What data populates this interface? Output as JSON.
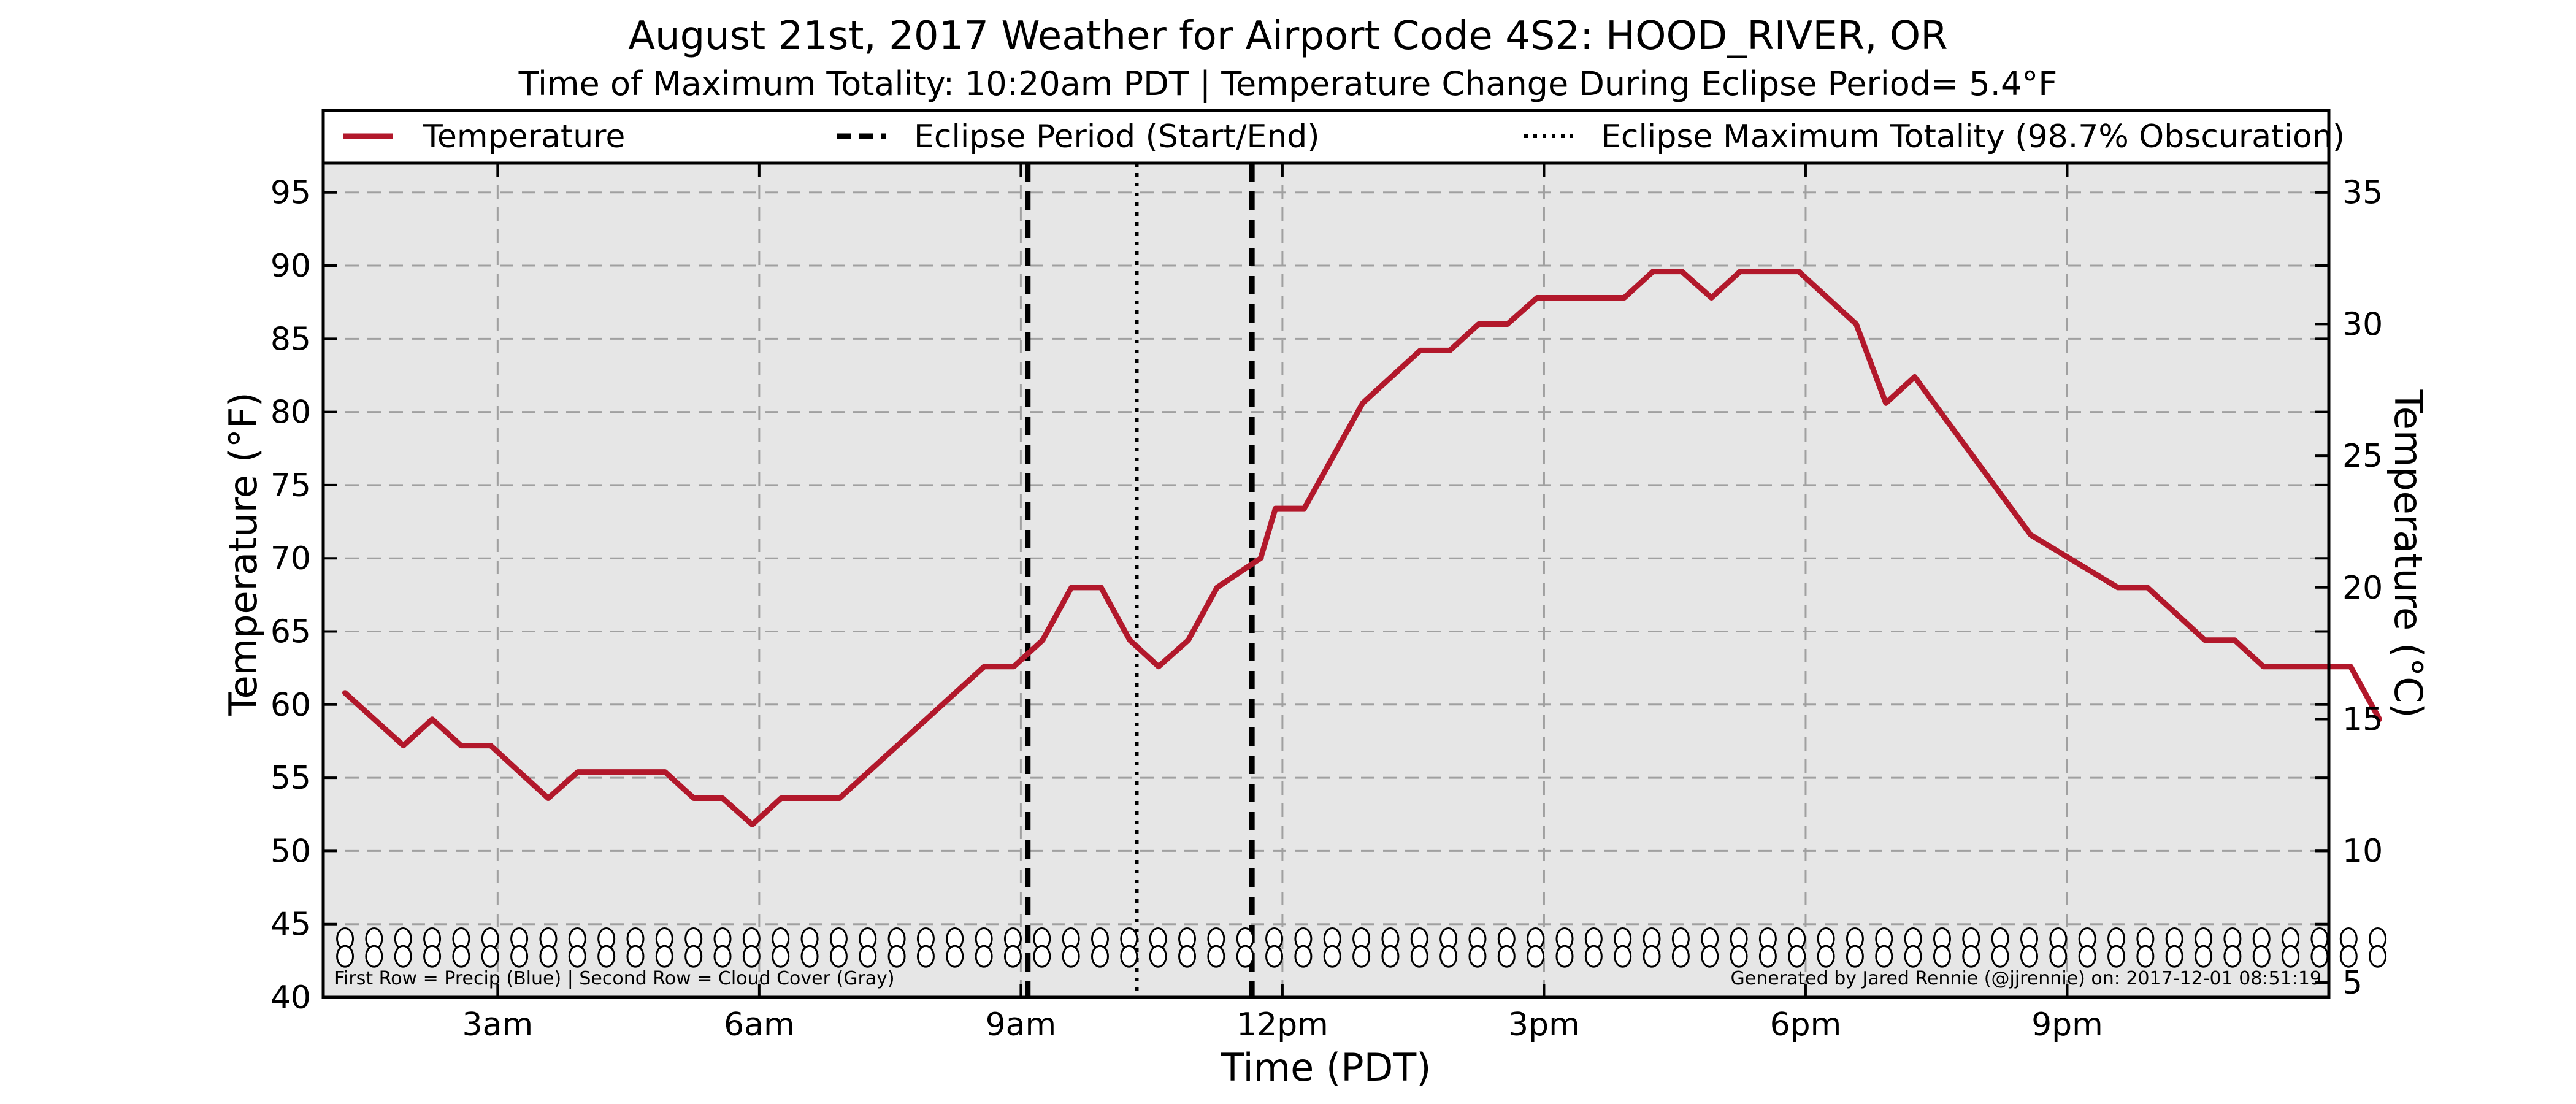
{
  "chart_data": {
    "type": "line",
    "title": "August 21st, 2017 Weather for Airport Code 4S2: HOOD_RIVER, OR",
    "subtitle": "Time of Maximum Totality: 10:20am PDT | Temperature Change During Eclipse Period= 5.4$^\\circ$F",
    "subtitle_display": "Time of Maximum Totality: 10:20am PDT | Temperature Change During Eclipse Period= 5.4°F",
    "xlabel": "Time (PDT)",
    "ylabel": "Temperature ($^\\circ$F)",
    "ylabel_display": "Temperature (°F)",
    "y2label_display": "Temperature (°C)",
    "x_unit": "hours after midnight",
    "xlim": [
      1,
      24
    ],
    "ylim": [
      40,
      97
    ],
    "y2lim": [
      4.44,
      36.11
    ],
    "x_ticks": [
      {
        "x": 3,
        "label": "3am"
      },
      {
        "x": 6,
        "label": "6am"
      },
      {
        "x": 9,
        "label": "9am"
      },
      {
        "x": 12,
        "label": "12pm"
      },
      {
        "x": 15,
        "label": "3pm"
      },
      {
        "x": 18,
        "label": "6pm"
      },
      {
        "x": 21,
        "label": "9pm"
      }
    ],
    "y_ticks": [
      40,
      45,
      50,
      55,
      60,
      65,
      70,
      75,
      80,
      85,
      90,
      95
    ],
    "y2_ticks": [
      5,
      10,
      15,
      20,
      25,
      30,
      35
    ],
    "grid": true,
    "legend_placement": "top",
    "legend": [
      {
        "label": "Temperature",
        "style": "solid"
      },
      {
        "label": "Eclipse Period (Start/End)",
        "style": "dashed"
      },
      {
        "label": "Eclipse Maximum Totality (98.7% Obscuration)",
        "style": "dotted"
      }
    ],
    "series": [
      {
        "name": "Temperature",
        "color": "#b2182b",
        "points": [
          [
            1.25,
            60.8
          ],
          [
            1.92,
            57.2
          ],
          [
            2.25,
            59.0
          ],
          [
            2.58,
            57.2
          ],
          [
            2.92,
            57.2
          ],
          [
            3.58,
            53.6
          ],
          [
            3.92,
            55.4
          ],
          [
            4.92,
            55.4
          ],
          [
            5.25,
            53.6
          ],
          [
            5.58,
            53.6
          ],
          [
            5.92,
            51.8
          ],
          [
            6.25,
            53.6
          ],
          [
            6.92,
            53.6
          ],
          [
            8.58,
            62.6
          ],
          [
            8.92,
            62.6
          ],
          [
            9.25,
            64.4
          ],
          [
            9.58,
            68.0
          ],
          [
            9.92,
            68.0
          ],
          [
            10.25,
            64.4
          ],
          [
            10.58,
            62.6
          ],
          [
            10.92,
            64.4
          ],
          [
            11.25,
            68.0
          ],
          [
            11.75,
            70.0
          ],
          [
            11.92,
            73.4
          ],
          [
            12.25,
            73.4
          ],
          [
            12.92,
            80.6
          ],
          [
            13.58,
            84.2
          ],
          [
            13.92,
            84.2
          ],
          [
            14.25,
            86.0
          ],
          [
            14.58,
            86.0
          ],
          [
            14.92,
            87.8
          ],
          [
            15.92,
            87.8
          ],
          [
            16.25,
            89.6
          ],
          [
            16.58,
            89.6
          ],
          [
            16.92,
            87.8
          ],
          [
            17.25,
            89.6
          ],
          [
            17.92,
            89.6
          ],
          [
            18.58,
            86.0
          ],
          [
            18.92,
            80.6
          ],
          [
            19.25,
            82.4
          ],
          [
            20.58,
            71.6
          ],
          [
            21.58,
            68.0
          ],
          [
            21.92,
            68.0
          ],
          [
            22.58,
            64.4
          ],
          [
            22.92,
            64.4
          ],
          [
            23.25,
            62.6
          ],
          [
            24.25,
            62.6
          ],
          [
            24.58,
            59.0
          ]
        ]
      }
    ],
    "eclipse_period": [
      9.08,
      11.65
    ],
    "eclipse_max_totality": 10.33,
    "marker_rows": {
      "x_start": 1.25,
      "x_end": 24.58,
      "x_step": 0.333,
      "row_y": [
        44.0,
        42.8
      ],
      "description_label": "First Row = Precip (Blue) | Second Row = Cloud Cover (Gray)"
    },
    "credit": "Generated by Jared Rennie (@jjrennie) on: 2017-12-01 08:51:19"
  }
}
